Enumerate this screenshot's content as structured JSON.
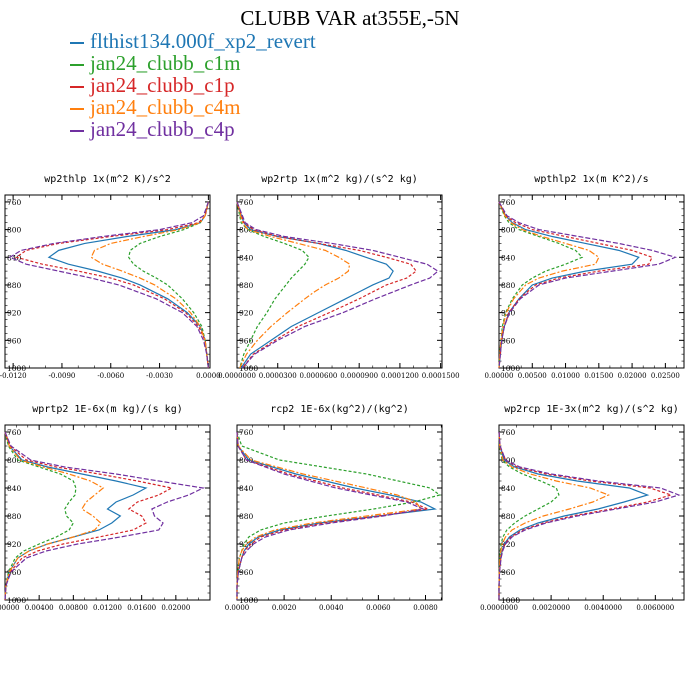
{
  "figure": {
    "title": "CLUBB VAR at355E,-5N"
  },
  "legend": [
    {
      "name": "flthist134.000f_xp2_revert",
      "color": "#1f77b4"
    },
    {
      "name": "jan24_clubb_c1m",
      "color": "#2ca02c"
    },
    {
      "name": "jan24_clubb_c1p",
      "color": "#d62728"
    },
    {
      "name": "jan24_clubb_c4m",
      "color": "#ff7f0e"
    },
    {
      "name": "jan24_clubb_c4p",
      "color": "#7030a0"
    }
  ],
  "chart_data": [
    {
      "type": "line",
      "title": "wp2thlp  1x(m^2 K)/s^2",
      "xlim": [
        -0.0125,
        0.0001
      ],
      "ylim": [
        1000,
        750
      ],
      "xticks": [
        -0.012,
        -0.009,
        -0.006,
        -0.003,
        0.0
      ],
      "xtick_labels": [
        "-0.0120",
        "-0.0090",
        "-0.0060",
        "-0.0030",
        "0.0000"
      ],
      "yticks": [
        760,
        800,
        840,
        880,
        920,
        960,
        1000
      ],
      "ytick_labels": [
        "760",
        "800",
        "840",
        "880",
        "920",
        "960",
        "1000"
      ],
      "y": [
        760,
        780,
        790,
        800,
        810,
        820,
        830,
        840,
        850,
        860,
        870,
        880,
        900,
        920,
        940,
        960,
        980,
        1000
      ],
      "series": [
        {
          "name": "flthist134.000f_xp2_revert",
          "values": [
            0,
            -0.0002,
            -0.0005,
            -0.002,
            -0.005,
            -0.0076,
            -0.0092,
            -0.0098,
            -0.0086,
            -0.0068,
            -0.0053,
            -0.0042,
            -0.0025,
            -0.0013,
            -0.0005,
            -0.0002,
            -0.0001,
            0
          ]
        },
        {
          "name": "jan24_clubb_c1m",
          "values": [
            0,
            -0.0002,
            -0.0005,
            -0.0015,
            -0.003,
            -0.0042,
            -0.0048,
            -0.0049,
            -0.0046,
            -0.004,
            -0.0032,
            -0.0025,
            -0.0016,
            -0.0009,
            -0.0004,
            -0.0002,
            -0.0001,
            0
          ]
        },
        {
          "name": "jan24_clubb_c1p",
          "values": [
            0,
            -0.0002,
            -0.0006,
            -0.0025,
            -0.006,
            -0.0092,
            -0.0112,
            -0.0118,
            -0.0102,
            -0.008,
            -0.006,
            -0.0046,
            -0.0027,
            -0.0014,
            -0.0006,
            -0.0002,
            -0.0001,
            0
          ]
        },
        {
          "name": "jan24_clubb_c4m",
          "values": [
            0,
            -0.0002,
            -0.0005,
            -0.0018,
            -0.004,
            -0.006,
            -0.007,
            -0.0072,
            -0.0065,
            -0.0053,
            -0.0042,
            -0.0033,
            -0.002,
            -0.0011,
            -0.0005,
            -0.0002,
            -0.0001,
            0
          ]
        },
        {
          "name": "jan24_clubb_c4p",
          "values": [
            0,
            -0.0003,
            -0.001,
            -0.003,
            -0.0065,
            -0.0095,
            -0.0115,
            -0.0122,
            -0.0112,
            -0.0092,
            -0.0072,
            -0.0055,
            -0.0032,
            -0.0016,
            -0.0007,
            -0.0003,
            -0.0001,
            0
          ]
        }
      ]
    },
    {
      "type": "line",
      "title": "wp2rtp  1x(m^2 kg)/(s^2 kg)",
      "xlim": [
        0.0,
        0.000151
      ],
      "ylim": [
        1000,
        750
      ],
      "xticks": [
        0.0,
        3e-05,
        6e-05,
        9e-05,
        0.00012,
        0.00015
      ],
      "xtick_labels": [
        "0.0000000",
        "0.0000300",
        "0.0000600",
        "0.0000900",
        "0.0001200",
        "0.0001500"
      ],
      "yticks": [
        760,
        800,
        840,
        880,
        920,
        960,
        1000
      ],
      "ytick_labels": [
        "760",
        "800",
        "840",
        "880",
        "920",
        "960",
        "1000"
      ],
      "y": [
        760,
        790,
        800,
        810,
        820,
        830,
        840,
        850,
        860,
        870,
        880,
        890,
        900,
        920,
        940,
        960,
        980,
        1000
      ],
      "series": [
        {
          "name": "flthist134.000f_xp2_revert",
          "values": [
            0,
            5e-06,
            1e-05,
            3e-05,
            6e-05,
            8e-05,
            9.5e-05,
            0.00011,
            0.000115,
            0.000112,
            0.0001,
            9e-05,
            8e-05,
            6e-05,
            4e-05,
            2.5e-05,
            1e-05,
            3e-06
          ]
        },
        {
          "name": "jan24_clubb_c1m",
          "values": [
            0,
            3e-06,
            8e-06,
            2e-05,
            3.5e-05,
            4.8e-05,
            5.3e-05,
            5e-05,
            4.5e-05,
            4e-05,
            3.6e-05,
            3.2e-05,
            2.8e-05,
            2.2e-05,
            1.5e-05,
            1e-05,
            5e-06,
            2e-06
          ]
        },
        {
          "name": "jan24_clubb_c1p",
          "values": [
            0,
            5e-06,
            1.2e-05,
            3e-05,
            6e-05,
            9e-05,
            0.00011,
            0.000128,
            0.000132,
            0.000125,
            0.00011,
            0.0001,
            9e-05,
            6.8e-05,
            4.5e-05,
            2.8e-05,
            1.2e-05,
            4e-06
          ]
        },
        {
          "name": "jan24_clubb_c4m",
          "values": [
            0,
            4e-06,
            8e-06,
            2.5e-05,
            4.5e-05,
            6.5e-05,
            7.5e-05,
            8.3e-05,
            8.2e-05,
            7.5e-05,
            6.5e-05,
            5.7e-05,
            5e-05,
            3.7e-05,
            2.5e-05,
            1.5e-05,
            7e-06,
            2e-06
          ]
        },
        {
          "name": "jan24_clubb_c4p",
          "values": [
            0,
            6e-06,
            1.4e-05,
            3.5e-05,
            7e-05,
            0.0001,
            0.00012,
            0.00014,
            0.000148,
            0.000142,
            0.000128,
            0.000115,
            0.000102,
            7.8e-05,
            5e-05,
            3e-05,
            1.3e-05,
            4e-06
          ]
        }
      ]
    },
    {
      "type": "line",
      "title": "wpthlp2  1x(m K^2)/s",
      "xlim": [
        0.0,
        0.0278
      ],
      "ylim": [
        1000,
        750
      ],
      "xticks": [
        0.0,
        0.005,
        0.01,
        0.015,
        0.02,
        0.025
      ],
      "xtick_labels": [
        "0.00000",
        "0.00500",
        "0.01000",
        "0.01500",
        "0.02000",
        "0.02500"
      ],
      "yticks": [
        760,
        800,
        840,
        880,
        920,
        960,
        1000
      ],
      "ytick_labels": [
        "760",
        "800",
        "840",
        "880",
        "920",
        "960",
        "1000"
      ],
      "y": [
        760,
        780,
        790,
        800,
        810,
        820,
        830,
        840,
        850,
        860,
        870,
        880,
        900,
        920,
        940,
        960,
        980,
        1000
      ],
      "series": [
        {
          "name": "flthist134.000f_xp2_revert",
          "values": [
            0,
            0.001,
            0.002,
            0.004,
            0.008,
            0.013,
            0.018,
            0.021,
            0.02,
            0.013,
            0.008,
            0.005,
            0.003,
            0.0015,
            0.0008,
            0.0004,
            0.0002,
            0
          ]
        },
        {
          "name": "jan24_clubb_c1m",
          "values": [
            0,
            0.0008,
            0.0015,
            0.003,
            0.006,
            0.009,
            0.0115,
            0.0125,
            0.01,
            0.007,
            0.005,
            0.0035,
            0.002,
            0.001,
            0.0005,
            0.0003,
            0.0001,
            0
          ]
        },
        {
          "name": "jan24_clubb_c1p",
          "values": [
            0,
            0.001,
            0.0025,
            0.005,
            0.01,
            0.015,
            0.02,
            0.023,
            0.0225,
            0.015,
            0.009,
            0.0055,
            0.003,
            0.0015,
            0.0008,
            0.0004,
            0.0002,
            0
          ]
        },
        {
          "name": "jan24_clubb_c4m",
          "values": [
            0,
            0.0009,
            0.0018,
            0.0035,
            0.0065,
            0.01,
            0.0135,
            0.015,
            0.0145,
            0.0095,
            0.006,
            0.004,
            0.0022,
            0.0011,
            0.0006,
            0.0003,
            0.0001,
            0
          ]
        },
        {
          "name": "jan24_clubb_c4p",
          "values": [
            0,
            0.0012,
            0.003,
            0.006,
            0.012,
            0.018,
            0.023,
            0.0265,
            0.024,
            0.017,
            0.01,
            0.006,
            0.0032,
            0.0016,
            0.0008,
            0.0004,
            0.0002,
            0
          ]
        }
      ]
    },
    {
      "type": "line",
      "title": "wprtp2  1E-6x(m kg)/(s kg)",
      "xlim": [
        0.0,
        0.024
      ],
      "ylim": [
        1000,
        750
      ],
      "xticks": [
        0.0,
        0.004,
        0.008,
        0.012,
        0.016,
        0.02
      ],
      "xtick_labels": [
        "0.00000",
        "0.00400",
        "0.00800",
        "0.01200",
        "0.01600",
        "0.02000"
      ],
      "yticks": [
        760,
        800,
        840,
        880,
        920,
        960,
        1000
      ],
      "ytick_labels": [
        "760",
        "800",
        "840",
        "880",
        "920",
        "960",
        "1000"
      ],
      "y": [
        760,
        780,
        800,
        810,
        820,
        830,
        840,
        850,
        860,
        870,
        880,
        890,
        900,
        910,
        920,
        930,
        940,
        960,
        980,
        1000
      ],
      "series": [
        {
          "name": "flthist134.000f_xp2_revert",
          "values": [
            0,
            0.0005,
            0.002,
            0.005,
            0.009,
            0.013,
            0.0165,
            0.015,
            0.013,
            0.012,
            0.0135,
            0.0125,
            0.011,
            0.008,
            0.005,
            0.0028,
            0.0015,
            0.0005,
            0.0001,
            0
          ]
        },
        {
          "name": "jan24_clubb_c1m",
          "values": [
            0,
            0.0004,
            0.0015,
            0.004,
            0.0065,
            0.008,
            0.0083,
            0.0082,
            0.0075,
            0.007,
            0.0072,
            0.008,
            0.0075,
            0.006,
            0.004,
            0.0022,
            0.0012,
            0.0004,
            0.0001,
            0
          ]
        },
        {
          "name": "jan24_clubb_c1p",
          "values": [
            0,
            0.0006,
            0.0025,
            0.006,
            0.011,
            0.0155,
            0.0195,
            0.018,
            0.0155,
            0.0145,
            0.016,
            0.0165,
            0.015,
            0.011,
            0.0068,
            0.0038,
            0.002,
            0.0006,
            0.0001,
            0
          ]
        },
        {
          "name": "jan24_clubb_c4m",
          "values": [
            0,
            0.0005,
            0.0018,
            0.0045,
            0.0075,
            0.01,
            0.0115,
            0.0105,
            0.0095,
            0.009,
            0.0103,
            0.0112,
            0.0105,
            0.008,
            0.005,
            0.0028,
            0.0015,
            0.0005,
            0.0001,
            0
          ]
        },
        {
          "name": "jan24_clubb_c4p",
          "values": [
            0,
            0.0007,
            0.003,
            0.007,
            0.013,
            0.018,
            0.0232,
            0.0215,
            0.019,
            0.0172,
            0.0175,
            0.0185,
            0.018,
            0.0135,
            0.0085,
            0.0048,
            0.0025,
            0.0007,
            0.0001,
            0
          ]
        }
      ]
    },
    {
      "type": "line",
      "title": "rcp2  1E-6x(kg^2)/(kg^2)",
      "xlim": [
        0.0,
        0.0087
      ],
      "ylim": [
        1000,
        750
      ],
      "xticks": [
        0.0,
        0.002,
        0.004,
        0.006,
        0.008
      ],
      "xtick_labels": [
        "0.0000",
        "0.0020",
        "0.0040",
        "0.0060",
        "0.0080"
      ],
      "yticks": [
        760,
        800,
        840,
        880,
        920,
        960,
        1000
      ],
      "ytick_labels": [
        "760",
        "800",
        "840",
        "880",
        "920",
        "960",
        "1000"
      ],
      "y": [
        760,
        780,
        800,
        820,
        840,
        850,
        860,
        870,
        880,
        890,
        900,
        910,
        920,
        930,
        940,
        960,
        980,
        1000
      ],
      "series": [
        {
          "name": "flthist134.000f_xp2_revert",
          "values": [
            0,
            5e-05,
            0.0005,
            0.0025,
            0.005,
            0.0065,
            0.0078,
            0.0084,
            0.006,
            0.0035,
            0.0018,
            0.0009,
            0.0005,
            0.0003,
            0.0002,
            5e-05,
            0,
            0
          ]
        },
        {
          "name": "jan24_clubb_c1m",
          "values": [
            0,
            0.0002,
            0.0018,
            0.0055,
            0.0082,
            0.0086,
            0.0075,
            0.0058,
            0.0038,
            0.002,
            0.001,
            0.0005,
            0.0003,
            0.0002,
            0.0001,
            3e-05,
            0,
            0
          ]
        },
        {
          "name": "jan24_clubb_c1p",
          "values": [
            0,
            5e-05,
            0.0004,
            0.0022,
            0.0045,
            0.006,
            0.0074,
            0.0081,
            0.006,
            0.0037,
            0.002,
            0.001,
            0.0006,
            0.0003,
            0.0002,
            5e-05,
            0,
            0
          ]
        },
        {
          "name": "jan24_clubb_c4m",
          "values": [
            0,
            5e-05,
            0.0006,
            0.0028,
            0.0055,
            0.0068,
            0.0076,
            0.0078,
            0.0055,
            0.0032,
            0.0016,
            0.0008,
            0.0004,
            0.0002,
            0.0001,
            3e-05,
            0,
            0
          ]
        },
        {
          "name": "jan24_clubb_c4p",
          "values": [
            0,
            4e-05,
            0.0004,
            0.002,
            0.0042,
            0.0057,
            0.0072,
            0.0079,
            0.0062,
            0.004,
            0.0022,
            0.0012,
            0.0007,
            0.0004,
            0.0002,
            6e-05,
            0,
            0
          ]
        }
      ]
    },
    {
      "type": "line",
      "title": "wp2rcp  1E-3x(m^2 kg)/(s^2 kg)",
      "xlim": [
        0.0,
        0.0071
      ],
      "ylim": [
        1000,
        750
      ],
      "xticks": [
        0.0,
        0.002,
        0.004,
        0.006
      ],
      "xtick_labels": [
        "0.0000000",
        "0.0020000",
        "0.0040000",
        "0.0060000"
      ],
      "yticks": [
        760,
        800,
        840,
        880,
        920,
        960,
        1000
      ],
      "ytick_labels": [
        "760",
        "800",
        "840",
        "880",
        "920",
        "960",
        "1000"
      ],
      "y": [
        760,
        780,
        800,
        810,
        820,
        830,
        840,
        850,
        860,
        870,
        880,
        890,
        900,
        910,
        920,
        930,
        940,
        960,
        980,
        1000
      ],
      "series": [
        {
          "name": "flthist134.000f_xp2_revert",
          "values": [
            0,
            3e-05,
            0.0002,
            0.0006,
            0.0015,
            0.003,
            0.005,
            0.0057,
            0.0048,
            0.0038,
            0.0025,
            0.0015,
            0.0008,
            0.0004,
            0.0002,
            0.00012,
            6e-05,
            2e-05,
            0,
            0
          ]
        },
        {
          "name": "jan24_clubb_c1m",
          "values": [
            0,
            2e-05,
            0.00012,
            0.0004,
            0.0009,
            0.0016,
            0.0022,
            0.0023,
            0.002,
            0.0015,
            0.001,
            0.0006,
            0.0003,
            0.00015,
            8e-05,
            5e-05,
            3e-05,
            1e-05,
            0,
            0
          ]
        },
        {
          "name": "jan24_clubb_c1p",
          "values": [
            0,
            4e-05,
            0.00025,
            0.0007,
            0.0018,
            0.0035,
            0.0058,
            0.0066,
            0.0057,
            0.0043,
            0.0028,
            0.0017,
            0.0009,
            0.00045,
            0.00022,
            0.00013,
            7e-05,
            2e-05,
            0,
            0
          ]
        },
        {
          "name": "jan24_clubb_c4m",
          "values": [
            0,
            3e-05,
            0.00015,
            0.0005,
            0.0012,
            0.0022,
            0.0035,
            0.0042,
            0.0036,
            0.0027,
            0.0017,
            0.001,
            0.0005,
            0.00025,
            0.00012,
            7e-05,
            4e-05,
            1e-05,
            0,
            0
          ]
        },
        {
          "name": "jan24_clubb_c4p",
          "values": [
            0,
            4e-05,
            0.00025,
            0.0008,
            0.002,
            0.0038,
            0.0062,
            0.0069,
            0.006,
            0.0045,
            0.003,
            0.0018,
            0.001,
            0.0005,
            0.00025,
            0.00014,
            8e-05,
            2e-05,
            0,
            0
          ]
        }
      ]
    }
  ]
}
